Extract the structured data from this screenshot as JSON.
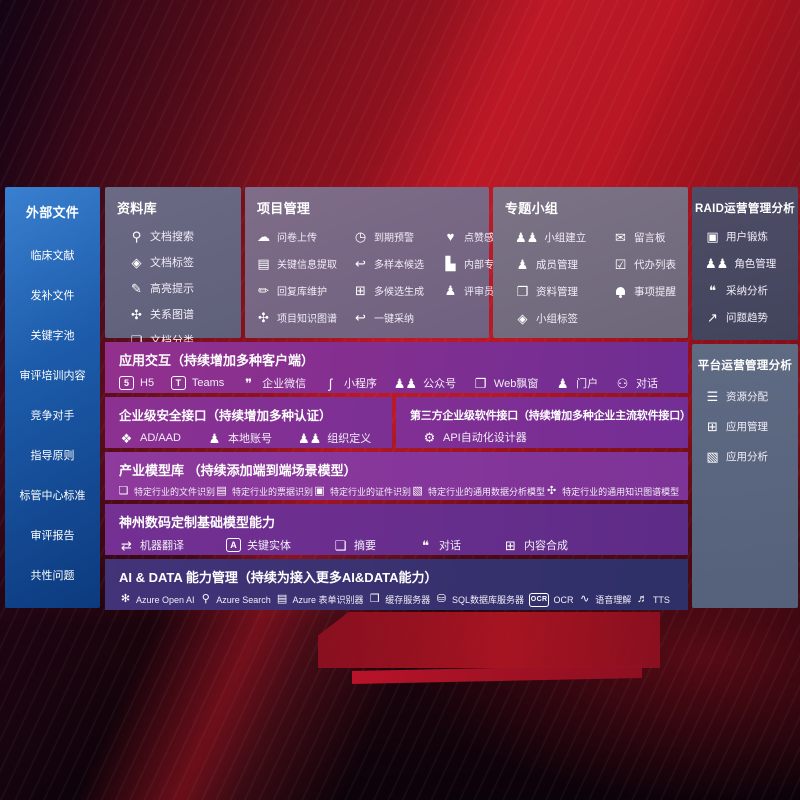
{
  "colors": {
    "accent_red": "#b01020",
    "sidebar_blue_top": "#3a80d0",
    "sidebar_blue_bottom": "#0c3a7e",
    "row_purple": "#8e2f90",
    "row_indigo": "#343067",
    "panel_gray": "#6e6880",
    "raid_slate": "#4b4b64",
    "platform_slate": "#5d6880"
  },
  "sidebar": {
    "title": "外部文件",
    "items": [
      "临床文献",
      "发补文件",
      "关键字池",
      "审评培训内容",
      "竞争对手",
      "指导原则",
      "标管中心标准",
      "审评报告",
      "共性问题"
    ]
  },
  "panels": {
    "repo": {
      "title": "资料库",
      "items": [
        {
          "label": "文档搜索",
          "icon": "doc-search-icon",
          "glyph": "⚲"
        },
        {
          "label": "文档标签",
          "icon": "doc-tag-icon",
          "glyph": "◈"
        },
        {
          "label": "高亮提示",
          "icon": "highlight-pen-icon",
          "glyph": "✎"
        },
        {
          "label": "关系图谱",
          "icon": "relation-graph-icon",
          "glyph": "✣"
        },
        {
          "label": "文档分类",
          "icon": "doc-classify-icon",
          "glyph": "❏"
        }
      ]
    },
    "project": {
      "title": "项目管理",
      "items": [
        {
          "label": "问卷上传",
          "icon": "cloud-upload-icon",
          "glyph": "☁"
        },
        {
          "label": "到期预警",
          "icon": "due-alarm-icon",
          "glyph": "◷"
        },
        {
          "label": "点赞感谢",
          "icon": "thumbs-up-icon",
          "glyph": "♥"
        },
        {
          "label": "关键信息提取",
          "icon": "key-info-extract-icon",
          "glyph": "▤"
        },
        {
          "label": "多样本候选",
          "icon": "multi-sample-icon",
          "glyph": "↩"
        },
        {
          "label": "内部专家排名",
          "icon": "expert-rank-icon",
          "glyph": "▙"
        },
        {
          "label": "回复库维护",
          "icon": "reply-library-icon",
          "glyph": "✏"
        },
        {
          "label": "多候选生成",
          "icon": "multi-candidate-icon",
          "glyph": "⊞"
        },
        {
          "label": "评审员画像",
          "icon": "reviewer-profile-icon",
          "glyph": "♟"
        },
        {
          "label": "项目知识图谱",
          "icon": "project-knowledge-graph-icon",
          "glyph": "✣"
        },
        {
          "label": "一键采纳",
          "icon": "one-click-adopt-icon",
          "glyph": "↩"
        }
      ]
    },
    "group": {
      "title": "专题小组",
      "items": [
        {
          "label": "小组建立",
          "icon": "group-create-icon",
          "glyph": "♟♟"
        },
        {
          "label": "留言板",
          "icon": "message-board-icon",
          "glyph": "✉"
        },
        {
          "label": "成员管理",
          "icon": "member-manage-icon",
          "glyph": "♟"
        },
        {
          "label": "代办列表",
          "icon": "todo-list-icon",
          "glyph": "☑"
        },
        {
          "label": "资料管理",
          "icon": "material-manage-icon",
          "glyph": "❒"
        },
        {
          "label": "事项提醒",
          "icon": "reminder-bell-icon",
          "glyph": "css-bell"
        },
        {
          "label": "小组标签",
          "icon": "group-tag-icon",
          "glyph": "◈"
        }
      ]
    },
    "raid": {
      "title": "RAID运营管理分析",
      "items": [
        {
          "label": "用户锻炼",
          "icon": "user-card-icon",
          "glyph": "▣"
        },
        {
          "label": "角色管理",
          "icon": "role-manage-icon",
          "glyph": "♟♟"
        },
        {
          "label": "采纳分析",
          "icon": "adoption-analysis-icon",
          "glyph": "❝"
        },
        {
          "label": "问题趋势",
          "icon": "issue-trend-icon",
          "glyph": "↗"
        }
      ]
    },
    "platform": {
      "title": "平台运营管理分析",
      "items": [
        {
          "label": "资源分配",
          "icon": "resource-allocation-icon",
          "glyph": "☰"
        },
        {
          "label": "应用管理",
          "icon": "app-manage-icon",
          "glyph": "⊞"
        },
        {
          "label": "应用分析",
          "icon": "app-analysis-icon",
          "glyph": "▧"
        }
      ]
    }
  },
  "rows": {
    "interact": {
      "title": "应用交互（持续增加多种客户端）",
      "items": [
        {
          "label": "H5",
          "icon": "h5-icon",
          "glyph": "5"
        },
        {
          "label": "Teams",
          "icon": "teams-icon",
          "glyph": "T"
        },
        {
          "label": "企业微信",
          "icon": "wecom-chat-icon",
          "glyph": "❞"
        },
        {
          "label": "小程序",
          "icon": "miniprogram-icon",
          "glyph": "∫"
        },
        {
          "label": "公众号",
          "icon": "official-account-icon",
          "glyph": "♟♟"
        },
        {
          "label": "Web飘窗",
          "icon": "web-popup-icon",
          "glyph": "❐"
        },
        {
          "label": "门户",
          "icon": "portal-icon",
          "glyph": "♟"
        },
        {
          "label": "对话",
          "icon": "dialogue-icon",
          "glyph": "⚇"
        }
      ]
    },
    "security": {
      "title": "企业级安全接口（持续增加多种认证）",
      "items": [
        {
          "label": "AD/AAD",
          "icon": "ad-aad-icon",
          "glyph": "❖"
        },
        {
          "label": "本地账号",
          "icon": "local-account-icon",
          "glyph": "♟"
        },
        {
          "label": "组织定义",
          "icon": "org-definition-icon",
          "glyph": "♟♟"
        }
      ]
    },
    "third": {
      "title": "第三方企业级软件接口（持续增加多种企业主流软件接口）",
      "items": [
        {
          "label": "API自动化设计器",
          "icon": "api-automation-designer-icon",
          "glyph": "⚙"
        }
      ]
    },
    "industry": {
      "title": "产业模型库 （持续添加端到端场景模型）",
      "items": [
        {
          "label": "特定行业的文件识别",
          "icon": "industry-file-recognition-icon",
          "glyph": "❏"
        },
        {
          "label": "特定行业的票据识别",
          "icon": "industry-invoice-recognition-icon",
          "glyph": "▤"
        },
        {
          "label": "特定行业的证件识别",
          "icon": "industry-id-recognition-icon",
          "glyph": "▣"
        },
        {
          "label": "特定行业的通用数据分析模型",
          "icon": "industry-data-analysis-model-icon",
          "glyph": "▧"
        },
        {
          "label": "特定行业的通用知识图谱模型",
          "icon": "industry-knowledge-graph-model-icon",
          "glyph": "✣"
        }
      ]
    },
    "foundation": {
      "title": "神州数码定制基础模型能力",
      "items": [
        {
          "label": "机器翻译",
          "icon": "machine-translation-icon",
          "glyph": "⇄"
        },
        {
          "label": "关键实体",
          "icon": "key-entity-icon",
          "glyph": "A"
        },
        {
          "label": "摘要",
          "icon": "summary-icon",
          "glyph": "❏"
        },
        {
          "label": "对话",
          "icon": "chat-bubble-icon",
          "glyph": "❝"
        },
        {
          "label": "内容合成",
          "icon": "content-synthesis-icon",
          "glyph": "⊞"
        }
      ]
    },
    "aidata": {
      "title": "AI & DATA 能力管理（持续为接入更多AI&DATA能力）",
      "items": [
        {
          "label": "Azure Open AI",
          "icon": "azure-openai-icon",
          "glyph": "✻"
        },
        {
          "label": "Azure Search",
          "icon": "azure-search-icon",
          "glyph": "⚲"
        },
        {
          "label": "Azure 表单识别器",
          "icon": "azure-form-recognizer-icon",
          "glyph": "▤"
        },
        {
          "label": "缓存服务器",
          "icon": "cache-server-icon",
          "glyph": "❒"
        },
        {
          "label": "SQL数据库服务器",
          "icon": "sql-database-icon",
          "glyph": "⛁"
        },
        {
          "label": "OCR",
          "icon": "ocr-icon",
          "glyph": "OCR"
        },
        {
          "label": "语音理解",
          "icon": "speech-understanding-icon",
          "glyph": "∿"
        },
        {
          "label": "TTS",
          "icon": "tts-icon",
          "glyph": "♬"
        }
      ]
    }
  }
}
